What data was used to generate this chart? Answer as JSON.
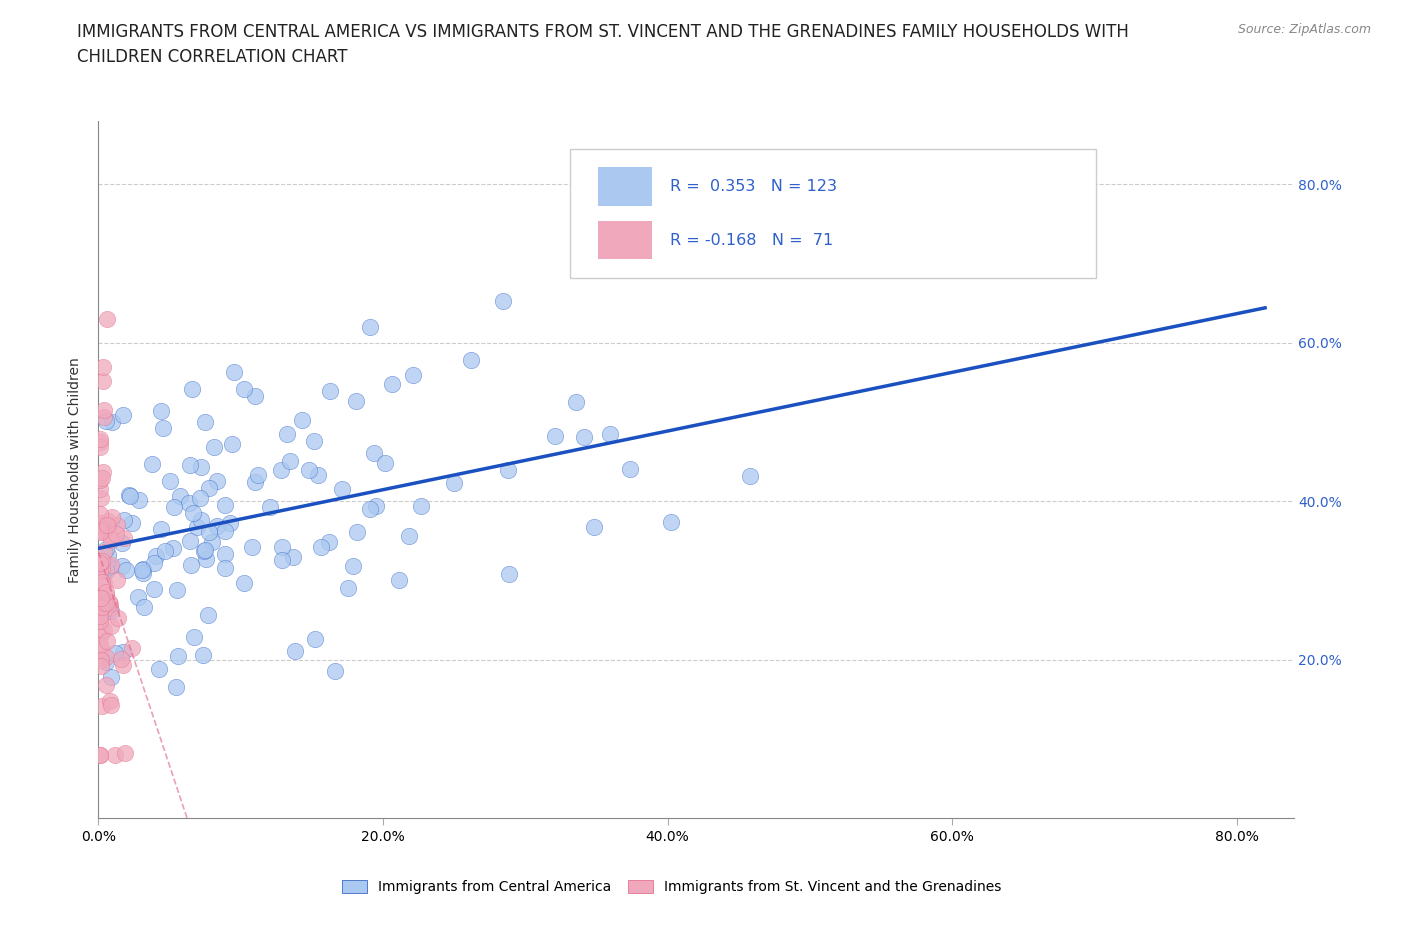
{
  "title_line1": "IMMIGRANTS FROM CENTRAL AMERICA VS IMMIGRANTS FROM ST. VINCENT AND THE GRENADINES FAMILY HOUSEHOLDS WITH",
  "title_line2": "CHILDREN CORRELATION CHART",
  "source": "Source: ZipAtlas.com",
  "ylabel": "Family Households with Children",
  "R_blue": 0.353,
  "N_blue": 123,
  "R_pink": -0.168,
  "N_pink": 71,
  "blue_scatter_color": "#aac8f0",
  "pink_scatter_color": "#f0a8bc",
  "blue_line_color": "#1a50c0",
  "pink_line_color": "#e06080",
  "legend_label_blue": "Immigrants from Central America",
  "legend_label_pink": "Immigrants from St. Vincent and the Grenadines",
  "grid_color": "#cccccc",
  "background_color": "#ffffff",
  "title_fontsize": 12,
  "axis_fontsize": 10,
  "tick_fontsize": 10,
  "source_fontsize": 9,
  "legend_text_color": "#3060cc",
  "xlim_max": 0.84,
  "ylim_max": 0.88
}
